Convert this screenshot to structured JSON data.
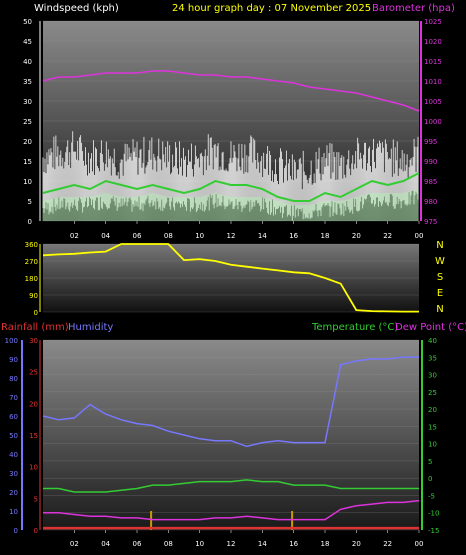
{
  "header": {
    "left_title": "Windspeed (kph)",
    "center_title": "24 hour graph day : 07 November 2025",
    "right_title": "Barometer (hpa)"
  },
  "colors": {
    "background": "#000000",
    "wind_axis": "#ffffff",
    "barometer": "#dd33dd",
    "title": "#ffff00",
    "gust": "#ffffff",
    "avg_wind": "#33cc33",
    "wind_fill": "#b8f0b8",
    "direction": "#ffff00",
    "rainfall": "#dd3333",
    "humidity": "#7777ff",
    "temperature": "#33cc33",
    "dew_point": "#dd33dd",
    "rain_bar": "#cc9900",
    "compass": "#ffff00"
  },
  "xaxis_labels": [
    "02",
    "04",
    "06",
    "08",
    "10",
    "12",
    "14",
    "16",
    "18",
    "20",
    "22",
    "00"
  ],
  "compass": [
    "N",
    "W",
    "S",
    "E",
    "N"
  ],
  "bottom_labels": {
    "rainfall": "Rainfall (mm)",
    "humidity": "Humidity",
    "temperature": "Temperature (°C)",
    "dew_point": "Dew Point (°C)"
  },
  "chart_data": [
    {
      "type": "line",
      "xlabel": "",
      "ylabel": "Windspeed (kph)",
      "x_hours": [
        0,
        1,
        2,
        3,
        4,
        5,
        6,
        7,
        8,
        9,
        10,
        11,
        12,
        13,
        14,
        15,
        16,
        17,
        18,
        19,
        20,
        21,
        22,
        23,
        24
      ],
      "yticks": [
        0,
        5,
        10,
        15,
        20,
        25,
        30,
        35,
        40,
        45,
        50
      ],
      "ylim": [
        0,
        50
      ],
      "y2ticks": [
        975,
        980,
        985,
        990,
        995,
        1000,
        1005,
        1010,
        1015,
        1020,
        1025
      ],
      "y2lim": [
        975,
        1025
      ],
      "series": [
        {
          "axis": "left",
          "values": [
            14,
            15,
            16,
            14,
            15,
            13,
            14,
            15,
            14,
            13,
            14,
            16,
            14,
            15,
            14,
            12,
            10,
            11,
            13,
            12,
            14,
            15,
            14,
            13,
            15
          ]
        },
        {
          "axis": "left",
          "values": [
            7,
            8,
            9,
            8,
            10,
            9,
            8,
            9,
            8,
            7,
            8,
            10,
            9,
            9,
            8,
            6,
            5,
            5,
            7,
            6,
            8,
            10,
            9,
            10,
            12
          ]
        },
        {
          "axis": "left",
          "values": [
            3,
            4,
            4,
            4,
            5,
            4,
            4,
            5,
            4,
            4,
            4,
            5,
            4,
            4,
            4,
            3,
            2,
            2,
            3,
            3,
            4,
            5,
            5,
            5,
            6
          ]
        },
        {
          "axis": "right",
          "values": [
            1010,
            1011,
            1011,
            1011.5,
            1012,
            1012,
            1012,
            1012.5,
            1012.5,
            1012,
            1011.5,
            1011.5,
            1011,
            1011,
            1010.5,
            1010,
            1009.5,
            1008.5,
            1008,
            1007.5,
            1007,
            1006,
            1005,
            1004,
            1002.5
          ]
        }
      ]
    },
    {
      "type": "line",
      "ylabel": "",
      "yticks": [
        0,
        90,
        180,
        270,
        360
      ],
      "ylim": [
        0,
        360
      ],
      "x_hours": [
        0,
        1,
        2,
        3,
        4,
        5,
        6,
        7,
        8,
        9,
        10,
        11,
        12,
        13,
        14,
        15,
        16,
        17,
        18,
        19,
        20,
        21,
        22,
        23,
        24
      ],
      "series": [
        {
          "values": [
            300,
            305,
            308,
            315,
            320,
            360,
            360,
            360,
            360,
            275,
            280,
            270,
            250,
            240,
            230,
            220,
            210,
            205,
            180,
            150,
            10,
            5,
            3,
            2,
            2
          ]
        }
      ]
    },
    {
      "type": "line",
      "x_hours": [
        0,
        1,
        2,
        3,
        4,
        5,
        6,
        7,
        8,
        9,
        10,
        11,
        12,
        13,
        14,
        15,
        16,
        17,
        18,
        19,
        20,
        21,
        22,
        23,
        24
      ],
      "humidity_ticks": [
        0,
        10,
        20,
        30,
        40,
        50,
        60,
        70,
        80,
        90,
        100
      ],
      "humidity_lim": [
        0,
        100
      ],
      "rain_ticks": [
        0,
        5,
        10,
        15,
        20,
        25,
        30
      ],
      "rain_lim": [
        0,
        30
      ],
      "temp_ticks": [
        -15,
        -10,
        -5,
        0,
        5,
        10,
        15,
        20,
        25,
        30,
        35,
        40
      ],
      "temp_lim": [
        -15,
        40
      ],
      "series": [
        {
          "axis": "humidity",
          "values": [
            60,
            58,
            59,
            66,
            61,
            58,
            56,
            55,
            52,
            50,
            48,
            47,
            47,
            44,
            46,
            47,
            46,
            46,
            46,
            87,
            89,
            90,
            90,
            91,
            91
          ]
        },
        {
          "axis": "temperature",
          "values": [
            -3,
            -3,
            -4,
            -4,
            -4,
            -3.5,
            -3,
            -2,
            -2,
            -1.5,
            -1,
            -1,
            -1,
            -0.5,
            -1,
            -1,
            -2,
            -2,
            -2,
            -3,
            -3,
            -3,
            -3,
            -3,
            -3
          ]
        },
        {
          "axis": "temperature",
          "values": [
            -10,
            -10,
            -10.5,
            -11,
            -11,
            -11.5,
            -11.5,
            -12,
            -12,
            -12,
            -12,
            -11.5,
            -11.5,
            -11,
            -11.5,
            -12,
            -12,
            -12,
            -12,
            -9,
            -8,
            -7.5,
            -7,
            -7,
            -6.5
          ]
        },
        {
          "axis": "rain",
          "values": [
            0.3,
            0.3,
            0.3,
            0.3,
            0.3,
            0.3,
            0.3,
            0.3,
            0.3,
            0.3,
            0.3,
            0.3,
            0.3,
            0.3,
            0.3,
            0.3,
            0.3,
            0.3,
            0.3,
            0.3,
            0.3,
            0.3,
            0.3,
            0.3,
            0.3
          ]
        }
      ],
      "rain_events_hours": [
        6.9,
        15.9
      ]
    }
  ]
}
